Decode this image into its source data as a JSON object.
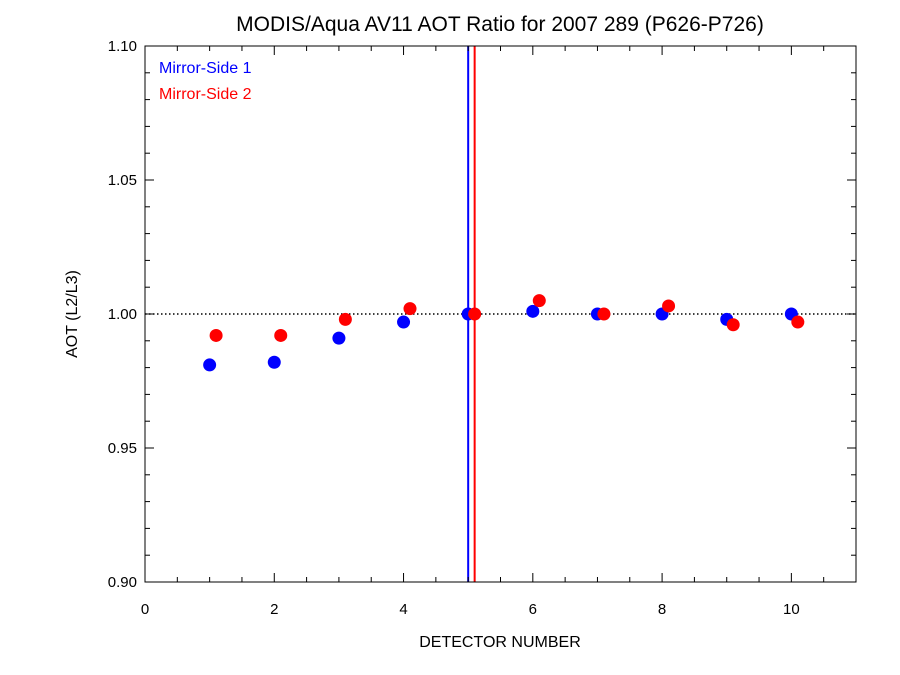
{
  "chart_data": {
    "type": "scatter",
    "title": "MODIS/Aqua AV11 AOT Ratio for 2007 289 (P626-P726)",
    "xlabel": "DETECTOR NUMBER",
    "ylabel": "AOT (L2/L3)",
    "xlim": [
      0,
      11
    ],
    "ylim": [
      0.9,
      1.1
    ],
    "x_ticks": [
      0,
      2,
      4,
      6,
      8,
      10
    ],
    "x_tick_labels": [
      "0",
      "2",
      "4",
      "6",
      "8",
      "10"
    ],
    "y_ticks": [
      0.9,
      0.95,
      1.0,
      1.05,
      1.1
    ],
    "y_tick_labels": [
      "0.90",
      "0.95",
      "1.00",
      "1.05",
      "1.10"
    ],
    "reference_line": {
      "y": 1.0,
      "style": "dotted",
      "color": "#000000"
    },
    "vertical_lines": [
      {
        "x": 5.0,
        "color": "#0000ff"
      },
      {
        "x": 5.1,
        "color": "#ff0000"
      }
    ],
    "legend_position": "top-left",
    "series": [
      {
        "name": "Mirror-Side 1",
        "color": "#0000ff",
        "x": [
          1,
          2,
          3,
          4,
          5,
          6,
          7,
          8,
          9,
          10
        ],
        "y": [
          0.981,
          0.982,
          0.991,
          0.997,
          1.0,
          1.001,
          1.0,
          1.0,
          0.998,
          1.0
        ]
      },
      {
        "name": "Mirror-Side 2",
        "color": "#ff0000",
        "x": [
          1.1,
          2.1,
          3.1,
          4.1,
          5.1,
          6.1,
          7.1,
          8.1,
          9.1,
          10.1
        ],
        "y": [
          0.992,
          0.992,
          0.998,
          1.002,
          1.0,
          1.005,
          1.0,
          1.003,
          0.996,
          0.997
        ]
      }
    ]
  }
}
